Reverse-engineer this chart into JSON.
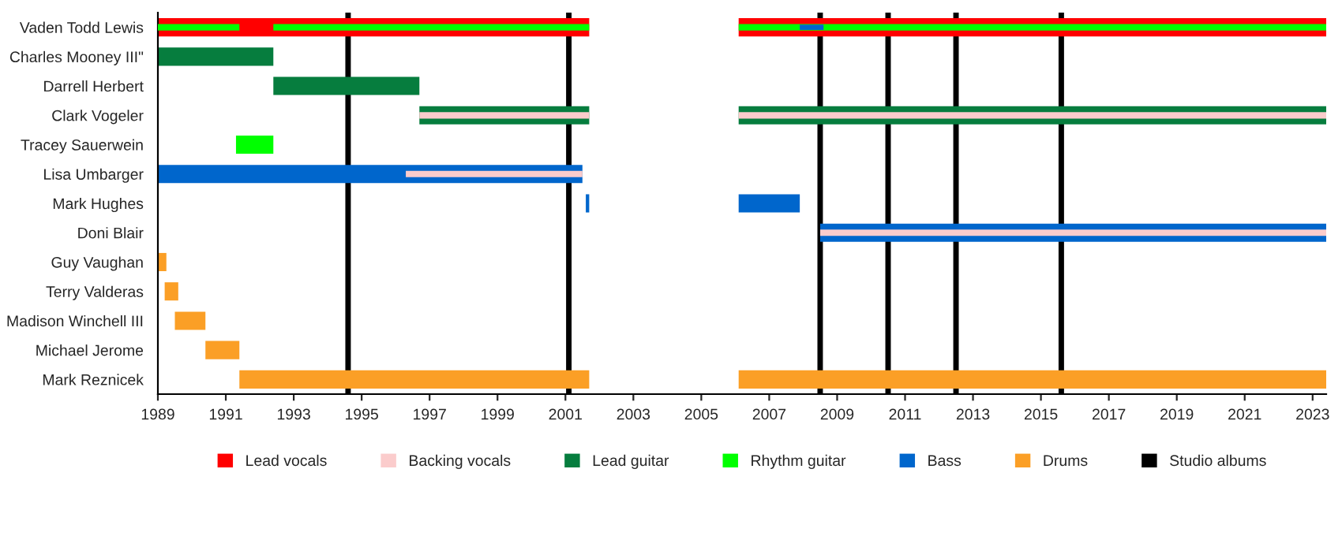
{
  "chart_data": {
    "type": "bar",
    "orientation": "horizontal",
    "categories": [
      "Vaden Todd Lewis",
      "Charles Mooney III\"",
      "Darrell Herbert",
      "Clark Vogeler",
      "Tracey Sauerwein",
      "Lisa Umbarger",
      "Mark Hughes",
      "Doni Blair",
      "Guy Vaughan",
      "Terry Valderas",
      "Madison Winchell III",
      "Michael Jerome",
      "Mark Reznicek"
    ],
    "series": [
      {
        "name": "Lead vocals",
        "color": "#ff0000",
        "base": [
          1989,
          null,
          null,
          null,
          null,
          null,
          null,
          null,
          null,
          null,
          null,
          null,
          null
        ],
        "values": [
          12.7,
          null,
          null,
          null,
          null,
          null,
          null,
          null,
          null,
          null,
          null,
          null,
          null
        ]
      },
      {
        "name": "Backing vocals",
        "color": "#fbcccc",
        "base": [
          null,
          null,
          null,
          1996.7,
          null,
          1996.3,
          null,
          2008.5,
          null,
          null,
          null,
          null,
          null
        ],
        "values": [
          null,
          null,
          null,
          5.0,
          null,
          5.2,
          null,
          14.9,
          null,
          null,
          null,
          null,
          null
        ]
      },
      {
        "name": "Lead guitar",
        "color": "#067d3e",
        "base": [
          null,
          1989,
          1992.4,
          1996.7,
          null,
          null,
          null,
          null,
          null,
          null,
          null,
          null,
          null
        ],
        "values": [
          null,
          3.4,
          4.3,
          5.0,
          null,
          null,
          null,
          null,
          null,
          null,
          null,
          null,
          null
        ]
      },
      {
        "name": "Rhythm guitar",
        "color": "#00ff00",
        "base": [
          1989,
          null,
          null,
          null,
          1991.3,
          null,
          null,
          null,
          null,
          null,
          null,
          null,
          null
        ],
        "values": [
          2.4,
          null,
          null,
          null,
          1.1,
          null,
          null,
          null,
          null,
          null,
          null,
          null,
          null
        ]
      },
      {
        "name": "Bass",
        "color": "#0066cc",
        "base": [
          null,
          null,
          null,
          null,
          null,
          1989,
          2001.6,
          2008.5,
          null,
          null,
          null,
          null,
          null
        ],
        "values": [
          null,
          null,
          null,
          null,
          null,
          12.5,
          0.1,
          14.9,
          null,
          null,
          null,
          null,
          null
        ]
      },
      {
        "name": "Drums",
        "color": "#fb9f26",
        "base": [
          null,
          null,
          null,
          null,
          null,
          null,
          null,
          null,
          1989,
          1989.2,
          1989.5,
          1990.4,
          1991.4
        ],
        "values": [
          null,
          null,
          null,
          null,
          null,
          null,
          null,
          null,
          0.25,
          0.4,
          0.9,
          1.0,
          10.3
        ]
      },
      {
        "color": "#fbcccc",
        "base": [
          null,
          null,
          null,
          2006.1,
          null,
          null,
          null,
          null,
          null,
          null,
          null,
          null,
          null
        ],
        "values": [
          null,
          null,
          null,
          17.3,
          null,
          null,
          null,
          null,
          null,
          null,
          null,
          null,
          null
        ]
      },
      {
        "color": "#00ff00",
        "base": [
          2006.1,
          null,
          null,
          null,
          null,
          null,
          null,
          null,
          null,
          null,
          null,
          null,
          null
        ],
        "values": [
          17.3,
          null,
          null,
          null,
          null,
          null,
          null,
          null,
          null,
          null,
          null,
          null,
          null
        ]
      },
      {
        "color": "#ff0000",
        "base": [
          2006.1,
          null,
          null,
          null,
          null,
          null,
          null,
          null,
          null,
          null,
          null,
          null,
          null
        ],
        "values": [
          17.3,
          null,
          null,
          null,
          null,
          null,
          null,
          null,
          null,
          null,
          null,
          null,
          null
        ]
      },
      {
        "color": "#067d3e",
        "base": [
          null,
          null,
          null,
          2006.1,
          null,
          null,
          null,
          null,
          null,
          null,
          null,
          null,
          null
        ],
        "values": [
          null,
          null,
          null,
          17.3,
          null,
          null,
          null,
          null,
          null,
          null,
          null,
          null,
          null
        ]
      },
      {
        "color": "#00ff00",
        "base": [
          1992.4,
          null,
          null,
          null,
          null,
          null,
          null,
          null,
          null,
          null,
          null,
          null,
          null
        ],
        "values": [
          9.3,
          null,
          null,
          null,
          null,
          null,
          null,
          null,
          null,
          null,
          null,
          null,
          null
        ]
      },
      {
        "color": "#0066cc",
        "base": [
          2007.9,
          null,
          null,
          null,
          null,
          null,
          2006.1,
          null,
          null,
          null,
          null,
          null,
          null
        ],
        "values": [
          0.7,
          null,
          null,
          null,
          null,
          null,
          1.8,
          null,
          null,
          null,
          null,
          null,
          null
        ]
      },
      {
        "color": "#fb9f26",
        "base": [
          null,
          null,
          null,
          null,
          null,
          null,
          null,
          null,
          null,
          null,
          null,
          null,
          2006.1
        ],
        "values": [
          null,
          null,
          null,
          null,
          null,
          null,
          null,
          null,
          null,
          null,
          null,
          null,
          17.3
        ]
      }
    ],
    "ref_lines": [
      {
        "axis": "x",
        "value": 1994.6,
        "label": "Studio albums",
        "color": "#000000"
      },
      {
        "axis": "x",
        "value": 2001.1,
        "color": "#000000"
      },
      {
        "axis": "x",
        "value": 2008.5,
        "color": "#000000"
      },
      {
        "axis": "x",
        "value": 2010.5,
        "color": "#000000"
      },
      {
        "axis": "x",
        "value": 2012.5,
        "color": "#000000"
      },
      {
        "axis": "x",
        "value": 2015.6,
        "color": "#000000"
      }
    ],
    "xlim": [
      1989,
      2023.4
    ],
    "xticks": [
      1989,
      1991,
      1993,
      1995,
      1997,
      1999,
      2001,
      2003,
      2005,
      2007,
      2009,
      2011,
      2013,
      2015,
      2017,
      2019,
      2021,
      2023
    ],
    "grid": false,
    "legend": "bottom"
  }
}
